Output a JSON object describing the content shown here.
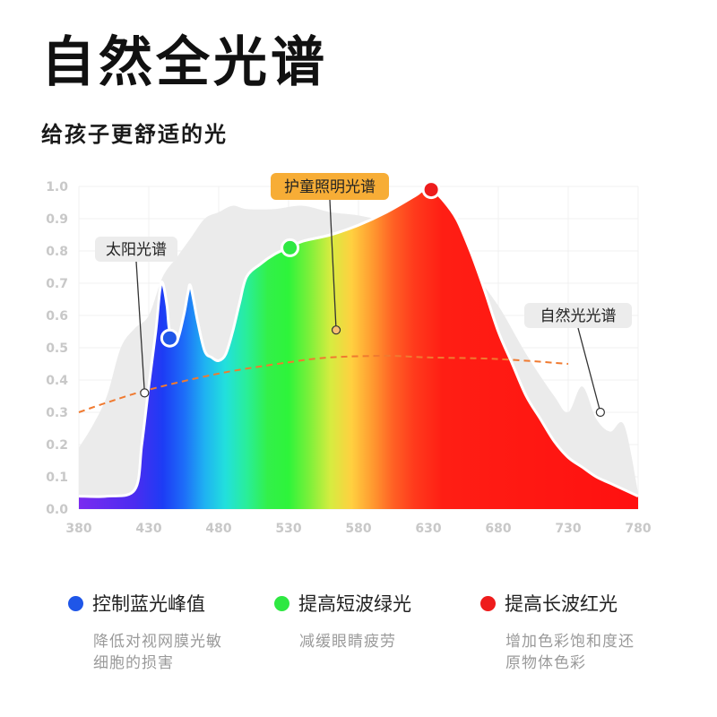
{
  "header": {
    "title": "自然全光谱",
    "subtitle": "给孩子更舒适的光"
  },
  "colors": {
    "sunlight_fill": "#ebebeb",
    "curve_dash": "#f07a30",
    "blue_marker": "#1f56e8",
    "green_marker": "#2ee842",
    "red_marker": "#ee1c1c",
    "tag_orange": "#f7ad36",
    "tag_gray": "#ececec",
    "axis_text": "#c8c8c8"
  },
  "chart_data": {
    "type": "area",
    "xlim": [
      380,
      780
    ],
    "ylim": [
      0,
      1
    ],
    "grid": true,
    "xticks": [
      "380",
      "430",
      "480",
      "530",
      "580",
      "630",
      "680",
      "730",
      "780"
    ],
    "yticks": [
      "0.0",
      "0.1",
      "0.2",
      "0.3",
      "0.4",
      "0.5",
      "0.6",
      "0.7",
      "0.8",
      "0.9",
      "1.0"
    ],
    "series": [
      {
        "name": "太阳光谱",
        "style": "light-gray-area",
        "x": [
          380,
          390,
          400,
          410,
          420,
          430,
          440,
          450,
          460,
          470,
          480,
          490,
          500,
          520,
          540,
          560,
          580,
          600,
          620,
          640,
          660,
          680,
          700,
          720,
          730,
          740,
          750,
          760,
          770,
          780
        ],
        "y": [
          0.19,
          0.26,
          0.35,
          0.5,
          0.56,
          0.6,
          0.72,
          0.78,
          0.84,
          0.9,
          0.92,
          0.94,
          0.93,
          0.93,
          0.94,
          0.92,
          0.91,
          0.89,
          0.86,
          0.81,
          0.74,
          0.63,
          0.48,
          0.35,
          0.3,
          0.38,
          0.28,
          0.24,
          0.26,
          0.05
        ]
      },
      {
        "name": "护童照明光谱",
        "style": "rainbow-area",
        "x": [
          380,
          400,
          420,
          425,
          430,
          435,
          438,
          440,
          443,
          445,
          450,
          455,
          458,
          460,
          465,
          470,
          475,
          480,
          485,
          490,
          495,
          500,
          510,
          520,
          530,
          540,
          560,
          580,
          600,
          620,
          625,
          630,
          635,
          640,
          650,
          660,
          670,
          680,
          690,
          700,
          710,
          720,
          730,
          740,
          750,
          760,
          770,
          780
        ],
        "y": [
          0.04,
          0.04,
          0.06,
          0.2,
          0.38,
          0.55,
          0.68,
          0.7,
          0.63,
          0.55,
          0.52,
          0.6,
          0.67,
          0.69,
          0.58,
          0.49,
          0.47,
          0.46,
          0.48,
          0.55,
          0.64,
          0.72,
          0.76,
          0.79,
          0.81,
          0.83,
          0.85,
          0.88,
          0.92,
          0.97,
          0.985,
          0.99,
          0.98,
          0.96,
          0.9,
          0.8,
          0.68,
          0.55,
          0.45,
          0.35,
          0.28,
          0.21,
          0.16,
          0.13,
          0.1,
          0.08,
          0.06,
          0.04
        ]
      },
      {
        "name": "自然光光谱",
        "style": "orange-dashed-line",
        "x": [
          380,
          400,
          430,
          480,
          530,
          560,
          600,
          630,
          680,
          730
        ],
        "y": [
          0.3,
          0.33,
          0.37,
          0.42,
          0.455,
          0.47,
          0.475,
          0.47,
          0.465,
          0.45
        ]
      }
    ],
    "markers": [
      {
        "x": 445,
        "y": 0.53,
        "color": "#1f56e8"
      },
      {
        "x": 531,
        "y": 0.81,
        "color": "#2ee842"
      },
      {
        "x": 632,
        "y": 0.99,
        "color": "#ee1c1c"
      }
    ],
    "annotations": [
      {
        "text": "太阳光谱",
        "style": "gray",
        "point": [
          427,
          0.36
        ]
      },
      {
        "text": "护童照明光谱",
        "style": "orange",
        "point": [
          564,
          0.555
        ]
      },
      {
        "text": "自然光光谱",
        "style": "gray",
        "point": [
          753,
          0.3
        ]
      }
    ]
  },
  "legend": [
    {
      "label": "控制蓝光峰值",
      "color": "#1f56e8",
      "desc_lines": [
        "降低对视网膜光敏",
        "细胞的损害"
      ]
    },
    {
      "label": "提高短波绿光",
      "color": "#2ee842",
      "desc_lines": [
        "减缓眼睛疲劳"
      ]
    },
    {
      "label": "提高长波红光",
      "color": "#ee1c1c",
      "desc_lines": [
        "增加色彩饱和度还",
        "原物体色彩"
      ]
    }
  ]
}
